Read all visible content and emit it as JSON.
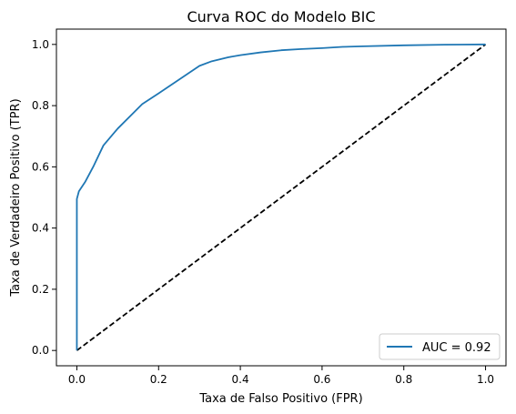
{
  "chart_data": {
    "type": "line",
    "title": "Curva ROC do Modelo BIC",
    "xlabel": "Taxa de Falso Positivo (FPR)",
    "ylabel": "Taxa de Verdadeiro Positivo (TPR)",
    "xlim": [
      -0.05,
      1.05
    ],
    "ylim": [
      -0.05,
      1.05
    ],
    "grid": false,
    "legend_position": "lower-right",
    "xticks": [
      0.0,
      0.2,
      0.4,
      0.6,
      0.8,
      1.0
    ],
    "xtick_labels": [
      "0.0",
      "0.2",
      "0.4",
      "0.6",
      "0.8",
      "1.0"
    ],
    "yticks": [
      0.0,
      0.2,
      0.4,
      0.6,
      0.8,
      1.0
    ],
    "ytick_labels": [
      "0.0",
      "0.2",
      "0.4",
      "0.6",
      "0.8",
      "1.0"
    ],
    "series": [
      {
        "name": "AUC = 0.92",
        "color": "#1f77b4",
        "style": "solid",
        "x": [
          0.0,
          0.0,
          0.005,
          0.02,
          0.04,
          0.065,
          0.1,
          0.16,
          0.2,
          0.25,
          0.3,
          0.33,
          0.37,
          0.4,
          0.45,
          0.5,
          0.55,
          0.6,
          0.65,
          0.7,
          0.8,
          0.9,
          1.0
        ],
        "y": [
          0.0,
          0.495,
          0.52,
          0.55,
          0.6,
          0.67,
          0.725,
          0.805,
          0.84,
          0.885,
          0.93,
          0.945,
          0.958,
          0.965,
          0.974,
          0.981,
          0.985,
          0.988,
          0.992,
          0.994,
          0.997,
          0.999,
          1.0
        ]
      },
      {
        "name": "",
        "color": "#000000",
        "style": "dashed",
        "x": [
          0.0,
          1.0
        ],
        "y": [
          0.0,
          1.0
        ]
      }
    ],
    "legend": [
      {
        "label": "AUC = 0.92",
        "color": "#1f77b4"
      }
    ]
  }
}
